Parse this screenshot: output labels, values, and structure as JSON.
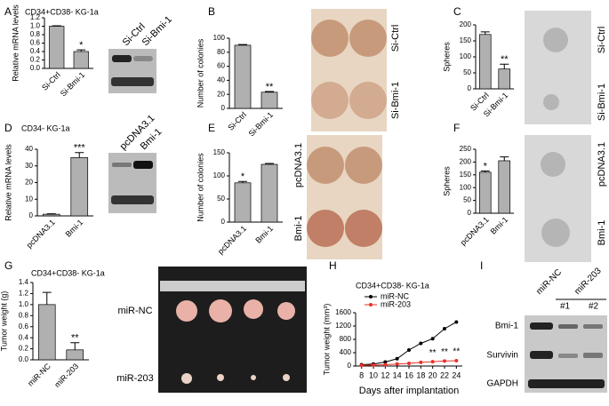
{
  "chart_data": [
    {
      "type": "bar",
      "panel": "A",
      "title": "CD34+CD38-  KG-1a",
      "ylabel": "Relative mRNA levels",
      "categories": [
        "Si-Ctrl",
        "Si-Bmi-1"
      ],
      "values": [
        1.0,
        0.4
      ],
      "errors": [
        0.01,
        0.04
      ],
      "value_annotations": [
        null,
        "*"
      ],
      "ylim": [
        0,
        1.2
      ],
      "yticks": [
        {
          "value": 0,
          "label": "0.0"
        },
        {
          "value": 0.2,
          "label": "0.2"
        },
        {
          "value": 0.4,
          "label": "0.4"
        },
        {
          "value": 0.6,
          "label": "0.6"
        },
        {
          "value": 0.8,
          "label": "0.8"
        },
        {
          "value": 1.0,
          "label": "1.0"
        },
        {
          "value": 1.2,
          "label": "1.2"
        }
      ],
      "color": "#b0b0b0",
      "image_labels": [
        "Si-Ctrl",
        "Si-Bmi-1"
      ]
    },
    {
      "type": "bar",
      "panel": "B",
      "ylabel": "Number of colonies",
      "categories": [
        "Si-Ctrl",
        "Si-Bmi-1"
      ],
      "values": [
        90,
        23
      ],
      "errors": [
        1,
        1
      ],
      "value_annotations": [
        null,
        "**"
      ],
      "ylim": [
        0,
        100
      ],
      "yticks": [
        0,
        20,
        40,
        60,
        80,
        100
      ],
      "color": "#b0b0b0",
      "image_labels": [
        "Si-Ctrl",
        "Si-Bmi-1"
      ]
    },
    {
      "type": "bar",
      "panel": "C",
      "ylabel": "Spheres",
      "categories": [
        "Si-Ctrl",
        "Si-Bmi-1"
      ],
      "values": [
        170,
        62
      ],
      "errors": [
        8,
        15
      ],
      "value_annotations": [
        null,
        "**"
      ],
      "ylim": [
        0,
        200
      ],
      "yticks": [
        0,
        50,
        100,
        150,
        200
      ],
      "color": "#b0b0b0",
      "image_labels": [
        "Si-Ctrl",
        "Si-Bmi-1"
      ]
    },
    {
      "type": "bar",
      "panel": "D",
      "title": "CD34-  KG-1a",
      "ylabel": "Relative mRNA levels",
      "categories": [
        "pcDNA3.1",
        "Bmi-1"
      ],
      "values": [
        1,
        35
      ],
      "errors": [
        0.3,
        3
      ],
      "value_annotations": [
        null,
        "***"
      ],
      "ylim": [
        0,
        40
      ],
      "yticks": [
        0,
        10,
        20,
        30,
        40
      ],
      "color": "#b0b0b0",
      "image_labels": [
        "pcDNA3.1",
        "Bmi-1"
      ]
    },
    {
      "type": "bar",
      "panel": "E",
      "ylabel": "Number of colonies",
      "categories": [
        "pcDNA3.1",
        "Bmi-1"
      ],
      "values": [
        85,
        125
      ],
      "errors": [
        3,
        2
      ],
      "value_annotations": [
        "*",
        null
      ],
      "ylim": [
        0,
        150
      ],
      "yticks": [
        0,
        50,
        100,
        150
      ],
      "color": "#b0b0b0",
      "image_labels": [
        "pcDNA3.1",
        "Bmi-1"
      ]
    },
    {
      "type": "bar",
      "panel": "F",
      "ylabel": "Spheres",
      "categories": [
        "pcDNA3.1",
        "Bmi-1"
      ],
      "values": [
        160,
        205
      ],
      "errors": [
        5,
        15
      ],
      "value_annotations": [
        "*",
        null
      ],
      "ylim": [
        0,
        250
      ],
      "yticks": [
        0,
        50,
        100,
        150,
        200,
        250
      ],
      "color": "#b0b0b0",
      "image_labels": [
        "pcDNA3.1",
        "Bmi-1"
      ]
    },
    {
      "type": "bar",
      "panel": "G",
      "title": "CD34+CD38-  KG-1a",
      "ylabel": "Tumor weight (g)",
      "categories": [
        "miR-NC",
        "miR-203"
      ],
      "values": [
        1.0,
        0.18
      ],
      "errors": [
        0.22,
        0.13
      ],
      "value_annotations": [
        null,
        "**"
      ],
      "ylim": [
        0,
        1.4
      ],
      "yticks": [
        {
          "value": 0,
          "label": "0.0"
        },
        {
          "value": 0.2,
          "label": "0.2"
        },
        {
          "value": 0.4,
          "label": "0.4"
        },
        {
          "value": 0.6,
          "label": "0.6"
        },
        {
          "value": 0.8,
          "label": "0.8"
        },
        {
          "value": 1.0,
          "label": "1.0"
        },
        {
          "value": 1.2,
          "label": "1.2"
        },
        {
          "value": 1.4,
          "label": "1.4"
        }
      ],
      "color": "#b0b0b0",
      "image_labels": [
        "miR-NC",
        "miR-203"
      ]
    },
    {
      "type": "line",
      "panel": "H",
      "title": "CD34+CD38-  KG-1a",
      "ylabel": "Tumor weight (mm³)",
      "xlabel": "Days after implantation",
      "x": [
        8,
        10,
        12,
        14,
        16,
        18,
        20,
        22,
        24
      ],
      "xlim": [
        7,
        25
      ],
      "xticks": [
        8,
        10,
        12,
        14,
        16,
        18,
        20,
        22,
        24
      ],
      "ylim": [
        0,
        1600
      ],
      "yticks": [
        0,
        400,
        800,
        1200,
        1600
      ],
      "series": [
        {
          "name": "miR-NC",
          "color": "#000000",
          "values": [
            40,
            60,
            120,
            220,
            480,
            680,
            820,
            1120,
            1320
          ]
        },
        {
          "name": "miR-203",
          "color": "#e8322a",
          "values": [
            20,
            30,
            40,
            60,
            80,
            110,
            130,
            150,
            160
          ],
          "value_annotations": [
            null,
            null,
            null,
            null,
            null,
            null,
            "**",
            "**",
            "**"
          ]
        }
      ],
      "legend": "upper left"
    }
  ],
  "blot_panel": {
    "panel": "I",
    "columns": [
      "miR-NC",
      "miR-203"
    ],
    "lanes": [
      "#1",
      "#2"
    ],
    "rows": [
      "Bmi-1",
      "Survivin",
      "GAPDH"
    ]
  }
}
